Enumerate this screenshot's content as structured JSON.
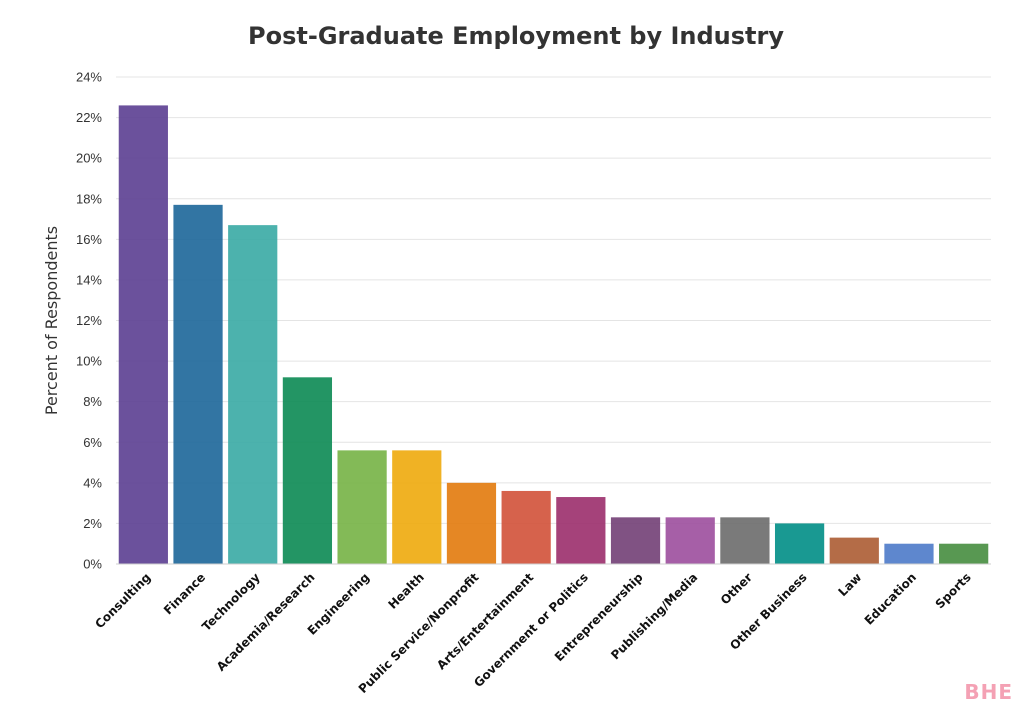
{
  "chart_data": {
    "type": "bar",
    "title": "Post-Graduate Employment by Industry",
    "xlabel": "",
    "ylabel": "Percent of Respondents",
    "ylim": [
      0,
      24
    ],
    "yticks": [
      0,
      2,
      4,
      6,
      8,
      10,
      12,
      14,
      16,
      18,
      20,
      22,
      24
    ],
    "ytick_labels": [
      "0%",
      "2%",
      "4%",
      "6%",
      "8%",
      "10%",
      "12%",
      "14%",
      "16%",
      "18%",
      "20%",
      "22%",
      "24%"
    ],
    "grid": true,
    "categories": [
      "Consulting",
      "Finance",
      "Technology",
      "Academia/Research",
      "Engineering",
      "Health",
      "Public Service/Nonprofit",
      "Arts/Entertainment",
      "Government or Politics",
      "Entrepreneurship",
      "Publishing/Media",
      "Other",
      "Other Business",
      "Law",
      "Education",
      "Sports"
    ],
    "values": [
      22.6,
      17.7,
      16.7,
      9.2,
      5.6,
      5.6,
      4.0,
      3.6,
      3.3,
      2.3,
      2.3,
      2.3,
      2.0,
      1.3,
      1.0,
      1.0
    ],
    "colors": [
      "#5b3e91",
      "#1c6699",
      "#38aaa4",
      "#0b8a53",
      "#76b345",
      "#eeaa0c",
      "#e27a0c",
      "#d25139",
      "#9b2d6b",
      "#723f75",
      "#9c4e9d",
      "#6c6c6c",
      "#008e86",
      "#ac5c33",
      "#4d7ac9",
      "#468d3f"
    ]
  },
  "watermark": "BHE"
}
